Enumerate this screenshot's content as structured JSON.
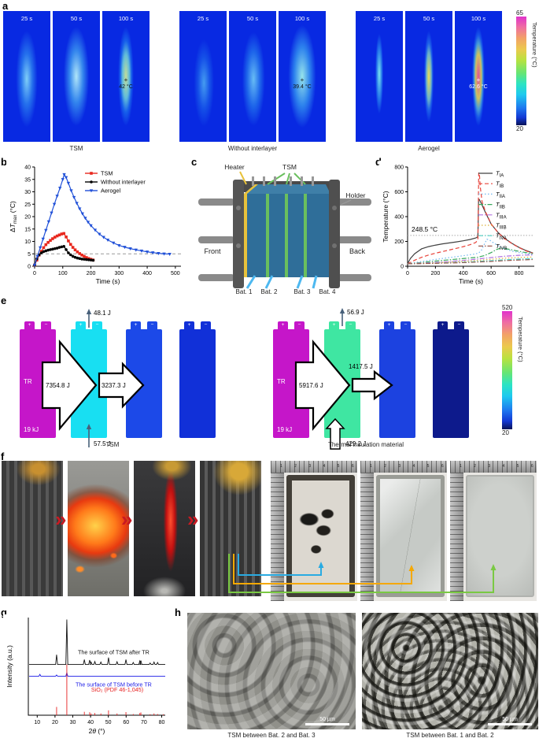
{
  "panel_labels": {
    "a": "a",
    "b": "b",
    "c": "c",
    "d": "d",
    "e": "e",
    "f": "f",
    "g": "g",
    "h": "h"
  },
  "panel_a": {
    "groups": [
      {
        "label": "TSM",
        "frames": [
          {
            "time": "25 s"
          },
          {
            "time": "50 s"
          },
          {
            "time": "100 s",
            "marker": "+",
            "temp": "42 °C"
          }
        ]
      },
      {
        "label": "Without interlayer",
        "frames": [
          {
            "time": "25 s"
          },
          {
            "time": "50 s"
          },
          {
            "time": "100 s",
            "marker": "+",
            "temp": "39.4 °C"
          }
        ]
      },
      {
        "label": "Aerogel",
        "frames": [
          {
            "time": "25 s"
          },
          {
            "time": "50 s"
          },
          {
            "time": "100 s",
            "marker": "+",
            "temp": "62.6 °C"
          }
        ]
      }
    ],
    "colorbar": {
      "max": "65",
      "min": "20",
      "label": "Temperature (°C)"
    }
  },
  "panel_c": {
    "labels": {
      "heater": "Heater",
      "tsm": "TSM",
      "holder": "Holder",
      "front": "Front",
      "back": "Back",
      "bat1": "Bat. 1",
      "bat2": "Bat. 2",
      "bat3": "Bat. 3",
      "bat4": "Bat. 4"
    }
  },
  "panel_e": {
    "plus": "+",
    "minus": "−",
    "colorbar": {
      "max": "520",
      "min": "20",
      "label": "Temperature (°C)"
    },
    "groups": [
      {
        "caption": "TSM",
        "tr_label": "TR",
        "energy_label": "19 kJ",
        "batteries": [
          "#c516c9",
          "#18dff2",
          "#1c49e8",
          "#1130d8"
        ],
        "arrows": {
          "main": "7354.8 J",
          "secondary": "3237.3 J",
          "top": "48.1 J",
          "bottom": "57.5 J"
        }
      },
      {
        "caption": "Thermal insulation material",
        "tr_label": "TR",
        "energy_label": "19 kJ",
        "batteries": [
          "#c516c9",
          "#3fe6a2",
          "#1c42e0",
          "#0d1a8c"
        ],
        "arrows": {
          "main": "5917.6 J",
          "secondary": "1417.5 J",
          "top": "56.9 J",
          "bottom": "429.2 J"
        }
      }
    ]
  },
  "panel_f": {
    "chevron": "»",
    "ruler_numbers": "1 2 3 4 5 6",
    "connectors": [
      {
        "color": "#29abe2"
      },
      {
        "color": "#f5a800"
      },
      {
        "color": "#7ac943"
      }
    ]
  },
  "panel_h": {
    "images": [
      {
        "caption": "TSM between Bat. 2 and Bat. 3",
        "scalebar": "50 µm"
      },
      {
        "caption": "TSM between Bat. 1 and Bat. 2",
        "scalebar": "50 µm"
      }
    ]
  },
  "chart_data": [
    {
      "panel": "b",
      "type": "line",
      "xlabel": "Time (s)",
      "ylabel_parts": [
        {
          "t": "Δ"
        },
        {
          "t": "T",
          "i": true
        },
        {
          "t": "max",
          "sub": true
        },
        {
          "t": " (°C)"
        }
      ],
      "xlim": [
        0,
        520
      ],
      "ylim": [
        0,
        40
      ],
      "xticks": [
        0,
        100,
        200,
        300,
        400,
        500
      ],
      "yticks": [
        0,
        5,
        10,
        15,
        20,
        25,
        30,
        35,
        40
      ],
      "ref_y": 5,
      "legend": "inside-tr",
      "grid": false,
      "series": [
        {
          "name": "TSM",
          "color": "#e8281e",
          "marker": "square",
          "x": [
            0,
            8,
            16,
            24,
            32,
            40,
            48,
            56,
            64,
            72,
            80,
            88,
            96,
            104,
            112,
            120,
            128,
            136,
            144,
            152,
            160,
            168,
            176,
            184,
            192,
            200,
            208
          ],
          "y": [
            0.5,
            2.5,
            4.5,
            6,
            7.5,
            8.7,
            9.6,
            10.4,
            11.1,
            11.7,
            12.2,
            12.6,
            13,
            13.2,
            11.8,
            10.2,
            8.8,
            7.6,
            6.6,
            5.8,
            5.1,
            4.5,
            4,
            3.5,
            3.1,
            2.8,
            2.5
          ]
        },
        {
          "name": "Without interlayer",
          "color": "#000000",
          "marker": "circle",
          "x": [
            0,
            8,
            16,
            24,
            32,
            40,
            48,
            56,
            64,
            72,
            80,
            88,
            96,
            104,
            112,
            120,
            128,
            136,
            144,
            152,
            160,
            168,
            176,
            184,
            192,
            200,
            208
          ],
          "y": [
            0.5,
            3,
            4.6,
            5.4,
            5.9,
            6.2,
            6.5,
            6.7,
            6.9,
            7.1,
            7.3,
            7.6,
            7.8,
            8,
            6.7,
            5.4,
            4.6,
            4,
            3.6,
            3.3,
            3.1,
            2.9,
            2.8,
            2.7,
            2.6,
            2.5,
            2.4
          ]
        },
        {
          "name": "Aerogel",
          "color": "#2050d8",
          "marker": "triangle",
          "x": [
            0,
            10,
            20,
            30,
            40,
            50,
            60,
            70,
            80,
            90,
            100,
            105,
            112,
            120,
            130,
            140,
            150,
            160,
            170,
            180,
            190,
            200,
            215,
            230,
            245,
            260,
            280,
            300,
            320,
            340,
            360,
            380,
            400,
            420,
            440,
            460,
            480
          ],
          "y": [
            0.5,
            4,
            7.5,
            11,
            14.5,
            18,
            21.5,
            25,
            28.3,
            31.5,
            35,
            37,
            35.8,
            33.5,
            30.5,
            27.8,
            25.4,
            23.2,
            21.2,
            19.4,
            17.8,
            16.4,
            14.6,
            13,
            11.7,
            10.6,
            9.4,
            8.4,
            7.7,
            7.1,
            6.6,
            6.2,
            5.8,
            5.5,
            5.2,
            5,
            4.9
          ]
        }
      ]
    },
    {
      "panel": "d",
      "type": "line",
      "xlabel": "Time (s)",
      "ylabel": "Temperature (°C)",
      "xlim": [
        0,
        910
      ],
      "ylim": [
        0,
        800
      ],
      "xticks": [
        0,
        200,
        400,
        600,
        800
      ],
      "yticks": [
        0,
        200,
        400,
        600,
        800
      ],
      "annotation": {
        "text": "248.5 °C",
        "y": 248.5
      },
      "legend": "inside-r",
      "grid": false,
      "series": [
        {
          "label": "T",
          "sub": "IA",
          "color": "#404040",
          "dash": "",
          "x": [
            0,
            20,
            50,
            100,
            150,
            200,
            250,
            300,
            350,
            400,
            450,
            490,
            505,
            510,
            515,
            530,
            560,
            600,
            650,
            700,
            750,
            800,
            850,
            900
          ],
          "y": [
            20,
            62,
            100,
            140,
            158,
            170,
            180,
            188,
            196,
            205,
            216,
            228,
            238,
            540,
            538,
            505,
            432,
            340,
            272,
            222,
            184,
            152,
            127,
            107
          ]
        },
        {
          "label": "T",
          "sub": "IB",
          "color": "#e8433a",
          "dash": "5,3",
          "x": [
            0,
            50,
            100,
            150,
            200,
            250,
            300,
            350,
            400,
            450,
            490,
            505,
            511,
            516,
            522,
            535,
            560,
            600,
            650,
            700,
            750,
            800,
            850,
            900
          ],
          "y": [
            20,
            48,
            72,
            90,
            105,
            118,
            131,
            144,
            158,
            174,
            192,
            215,
            755,
            740,
            640,
            520,
            438,
            342,
            270,
            220,
            182,
            150,
            124,
            104
          ]
        },
        {
          "label": "T",
          "sub": "IIA",
          "color": "#72b8f0",
          "dash": "1.5,2.5",
          "x": [
            0,
            100,
            200,
            300,
            400,
            480,
            510,
            530,
            550,
            570,
            590,
            620,
            650,
            700,
            750,
            800,
            850,
            900
          ],
          "y": [
            20,
            38,
            55,
            70,
            85,
            98,
            106,
            128,
            175,
            218,
            210,
            186,
            166,
            139,
            122,
            110,
            101,
            95
          ]
        },
        {
          "label": "T",
          "sub": "IIB",
          "color": "#38a85c",
          "dash": "6,2,1.5,2",
          "x": [
            0,
            100,
            200,
            300,
            400,
            500,
            550,
            600,
            640,
            670,
            700,
            750,
            800,
            850,
            900
          ],
          "y": [
            20,
            30,
            42,
            52,
            62,
            72,
            85,
            110,
            135,
            146,
            143,
            132,
            120,
            110,
            101
          ]
        },
        {
          "label": "T",
          "sub": "IIIA",
          "color": "#b273e0",
          "dash": "6,2,1.5,2",
          "x": [
            0,
            150,
            300,
            450,
            600,
            700,
            800,
            900
          ],
          "y": [
            20,
            28,
            38,
            52,
            70,
            81,
            88,
            91
          ]
        },
        {
          "label": "T",
          "sub": "IIIB",
          "color": "#ddb23c",
          "dash": "1.5,2.5",
          "x": [
            0,
            150,
            300,
            450,
            600,
            700,
            800,
            900
          ],
          "y": [
            20,
            25,
            33,
            43,
            56,
            65,
            71,
            74
          ]
        },
        {
          "label": "T",
          "sub": "IVA",
          "color": "#4ecfc4",
          "dash": "6,2,1.5,2",
          "x": [
            0,
            150,
            300,
            450,
            600,
            700,
            800,
            900
          ],
          "y": [
            20,
            23,
            28,
            35,
            45,
            52,
            58,
            61
          ]
        },
        {
          "label": "T",
          "sub": "IVB",
          "color": "#9a5a50",
          "dash": "6,2,1.5,2",
          "x": [
            0,
            150,
            300,
            450,
            600,
            700,
            800,
            900
          ],
          "y": [
            20,
            22,
            26,
            31,
            39,
            45,
            50,
            54
          ]
        }
      ]
    },
    {
      "panel": "g",
      "type": "xrd",
      "xlabel_parts": [
        {
          "t": "2"
        },
        {
          "t": "θ",
          "i": true
        },
        {
          "t": " (°)"
        }
      ],
      "ylabel": "Intensity (a.u.)",
      "xlim": [
        5,
        82
      ],
      "xticks": [
        10,
        20,
        30,
        40,
        50,
        60,
        70,
        80
      ],
      "traces": [
        {
          "name": "The surface of TSM after TR",
          "color": "#111111",
          "baseline": 0.52,
          "peaks": [
            [
              20.9,
              0.1
            ],
            [
              26.65,
              0.46
            ],
            [
              36.5,
              0.05
            ],
            [
              39.5,
              0.045
            ],
            [
              40.3,
              0.025
            ],
            [
              42.4,
              0.03
            ],
            [
              45.8,
              0.025
            ],
            [
              50.1,
              0.07
            ],
            [
              54.9,
              0.028
            ],
            [
              59.9,
              0.05
            ],
            [
              64.0,
              0.02
            ],
            [
              67.7,
              0.035
            ],
            [
              68.3,
              0.04
            ],
            [
              73.5,
              0.015
            ],
            [
              75.7,
              0.025
            ],
            [
              77.7,
              0.02
            ]
          ]
        },
        {
          "name": "The surface of TSM before TR",
          "color": "#1a1ae6",
          "baseline": 0.4,
          "peaks": [
            [
              11.5,
              0.018
            ],
            [
              20.9,
              0.012
            ],
            [
              26.65,
              0.035
            ]
          ]
        },
        {
          "name": "SiO₂ (PDF 46-1,045)",
          "color": "#e62222",
          "baseline": 0,
          "sticks": [
            [
              20.9,
              0.085
            ],
            [
              26.65,
              0.52
            ],
            [
              36.5,
              0.035
            ],
            [
              39.5,
              0.03
            ],
            [
              40.3,
              0.018
            ],
            [
              42.4,
              0.022
            ],
            [
              45.8,
              0.018
            ],
            [
              50.1,
              0.05
            ],
            [
              54.9,
              0.018
            ],
            [
              59.9,
              0.032
            ],
            [
              64,
              0.012
            ],
            [
              67.7,
              0.022
            ],
            [
              68.3,
              0.028
            ],
            [
              73.5,
              0.01
            ],
            [
              75.7,
              0.018
            ],
            [
              77.7,
              0.012
            ],
            [
              81,
              0.01
            ]
          ]
        }
      ]
    }
  ]
}
